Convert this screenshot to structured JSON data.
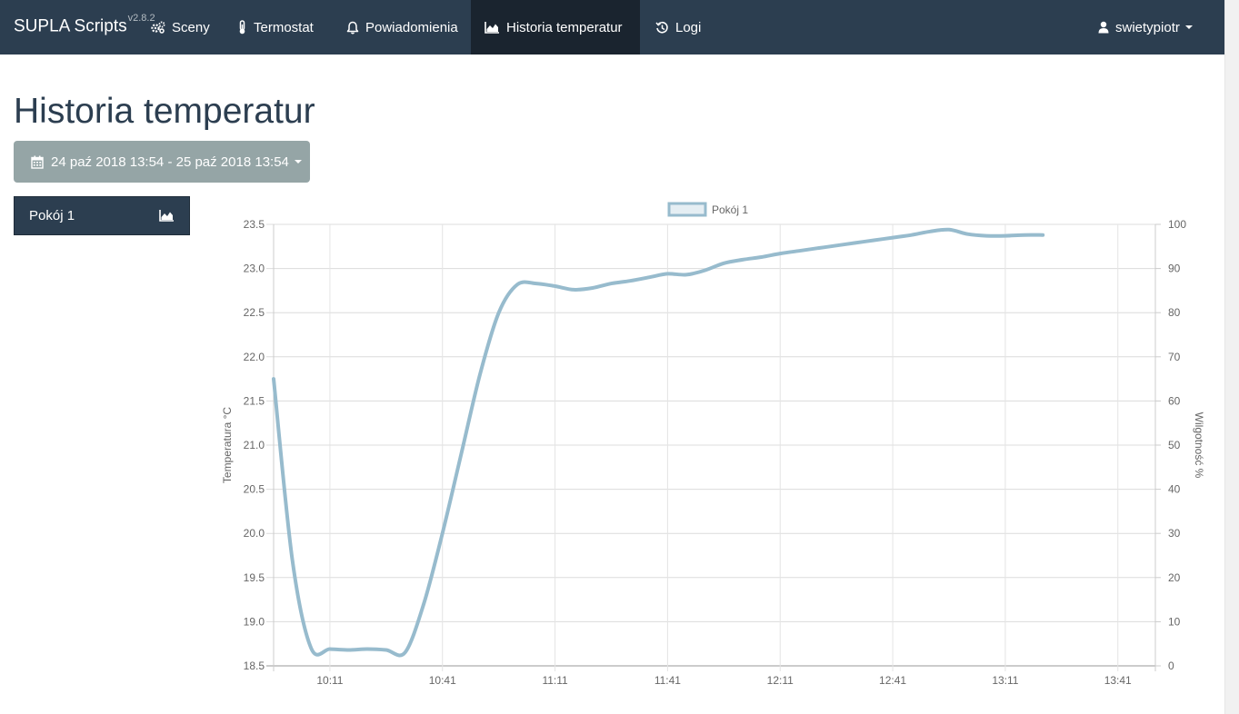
{
  "navbar": {
    "brand": "SUPLA Scripts",
    "version": "v2.8.2",
    "items": [
      {
        "label": "Sceny",
        "icon": "gears-icon"
      },
      {
        "label": "Termostat",
        "icon": "thermometer-icon"
      },
      {
        "label": "Powiadomienia",
        "icon": "bell-icon"
      },
      {
        "label": "Historia temperatur",
        "icon": "area-chart-icon",
        "active": true
      },
      {
        "label": "Logi",
        "icon": "history-icon"
      }
    ],
    "user": "swietypiotr"
  },
  "page": {
    "title": "Historia temperatur",
    "date_range": "24 paź 2018 13:54 - 25 paź 2018 13:54"
  },
  "sidebar": {
    "rooms": [
      {
        "label": "Pokój 1",
        "icon": "area-chart-icon"
      }
    ]
  },
  "colors": {
    "navbar": "#2c3e50",
    "navbar_active": "#1a242f",
    "range_button": "#95a5a6",
    "series_line": "#97bbcd",
    "series_fill": "#e5eef3"
  },
  "chart_data": {
    "type": "line",
    "legend": "top-center",
    "grid": true,
    "series": [
      {
        "name": "Pokój 1",
        "points": [
          [
            "09:56",
            21.75
          ],
          [
            "10:01",
            19.7
          ],
          [
            "10:06",
            18.7
          ],
          [
            "10:11",
            18.69
          ],
          [
            "10:16",
            18.68
          ],
          [
            "10:21",
            18.69
          ],
          [
            "10:26",
            18.68
          ],
          [
            "10:31",
            18.65
          ],
          [
            "10:36",
            19.2
          ],
          [
            "10:41",
            20.0
          ],
          [
            "10:46",
            20.9
          ],
          [
            "10:51",
            21.8
          ],
          [
            "10:56",
            22.5
          ],
          [
            "11:01",
            22.82
          ],
          [
            "11:06",
            22.83
          ],
          [
            "11:11",
            22.8
          ],
          [
            "11:16",
            22.76
          ],
          [
            "11:21",
            22.78
          ],
          [
            "11:26",
            22.83
          ],
          [
            "11:31",
            22.86
          ],
          [
            "11:36",
            22.9
          ],
          [
            "11:41",
            22.94
          ],
          [
            "11:46",
            22.93
          ],
          [
            "11:51",
            22.98
          ],
          [
            "11:56",
            23.06
          ],
          [
            "12:01",
            23.1
          ],
          [
            "12:06",
            23.13
          ],
          [
            "12:11",
            23.17
          ],
          [
            "12:16",
            23.2
          ],
          [
            "12:21",
            23.23
          ],
          [
            "12:26",
            23.26
          ],
          [
            "12:31",
            23.29
          ],
          [
            "12:36",
            23.32
          ],
          [
            "12:41",
            23.35
          ],
          [
            "12:46",
            23.38
          ],
          [
            "12:51",
            23.42
          ],
          [
            "12:56",
            23.44
          ],
          [
            "13:01",
            23.39
          ],
          [
            "13:06",
            23.37
          ],
          [
            "13:11",
            23.37
          ],
          [
            "13:16",
            23.38
          ],
          [
            "13:21",
            23.38
          ]
        ]
      }
    ],
    "x_range": [
      "09:56",
      "13:51"
    ],
    "x_ticks": [
      "10:11",
      "10:41",
      "11:11",
      "11:41",
      "12:11",
      "12:41",
      "13:11",
      "13:41"
    ],
    "y_left": {
      "label": "Temperatura °C",
      "range": [
        18.5,
        23.5
      ],
      "ticks": [
        "23.5",
        "23.0",
        "22.5",
        "22.0",
        "21.5",
        "21.0",
        "20.5",
        "20.0",
        "19.5",
        "19.0",
        "18.5"
      ]
    },
    "y_right": {
      "label": "Wilgotność %",
      "range": [
        0,
        100
      ],
      "ticks": [
        "100",
        "90",
        "80",
        "70",
        "60",
        "50",
        "40",
        "30",
        "20",
        "10",
        "0"
      ]
    }
  }
}
